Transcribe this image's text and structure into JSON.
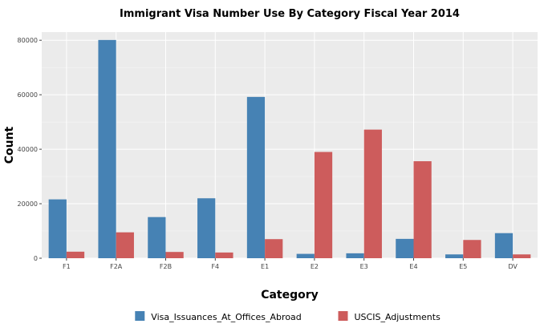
{
  "chart_data": {
    "type": "bar",
    "title": "Immigrant Visa Number Use By Category Fiscal Year 2014",
    "xlabel": "Category",
    "ylabel": "Count",
    "categories": [
      "F1",
      "F2A",
      "F2B",
      "F4",
      "E1",
      "E2",
      "E3",
      "E4",
      "E5",
      "DV"
    ],
    "series": [
      {
        "name": "Visa_Issuances_At_Offices_Abroad",
        "color": "#4682b4",
        "values": [
          21600,
          80100,
          15100,
          22000,
          59200,
          1600,
          1800,
          7100,
          1400,
          9200
        ]
      },
      {
        "name": "USCIS_Adjustments",
        "color": "#cd5c5c",
        "values": [
          2400,
          9500,
          2300,
          2100,
          7000,
          39000,
          47200,
          35600,
          6700,
          1400
        ]
      }
    ],
    "yticks": [
      0,
      20000,
      40000,
      60000,
      80000
    ],
    "ytick_labels": [
      "0",
      "20000",
      "40000",
      "60000",
      "80000"
    ],
    "ylim": [
      0,
      83000
    ],
    "grid": true,
    "legend_position": "bottom",
    "panel_background": "#ebebeb",
    "gridline_color": "#ffffff"
  }
}
